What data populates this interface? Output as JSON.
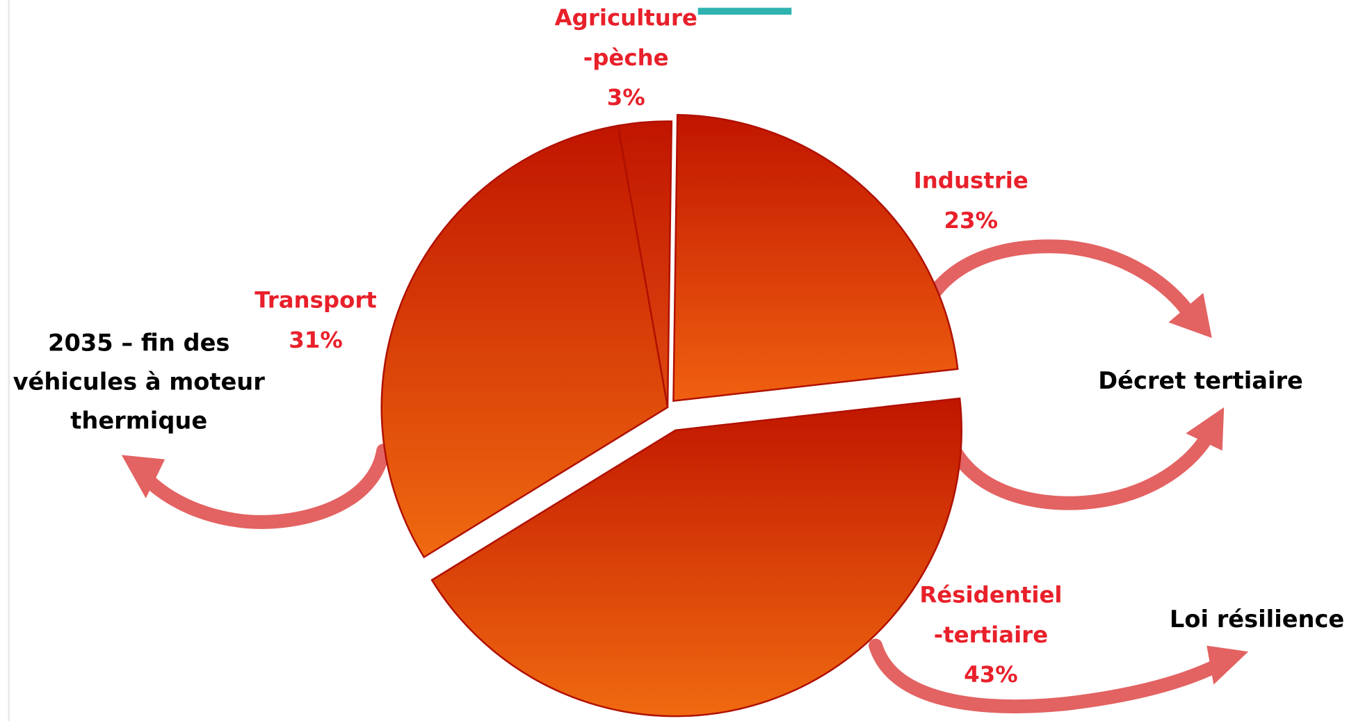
{
  "chart_data": {
    "type": "pie",
    "categories": [
      [
        "Agriculture",
        "-pèche"
      ],
      [
        "Industrie"
      ],
      [
        "Résidentiel",
        "-tertiaire"
      ],
      [
        "Transport"
      ]
    ],
    "values": [
      3,
      23,
      43,
      31
    ],
    "value_labels": [
      "3%",
      "23%",
      "43%",
      "31%"
    ],
    "colors": [
      "#e04a10",
      "#f06010",
      "#f06a10",
      "#f06a10"
    ],
    "annotations": [
      [
        "2035 – fin des",
        "véhicules à moteur",
        "thermique"
      ],
      [
        "Décret tertiaire"
      ],
      [
        "Loi résilience"
      ]
    ]
  }
}
